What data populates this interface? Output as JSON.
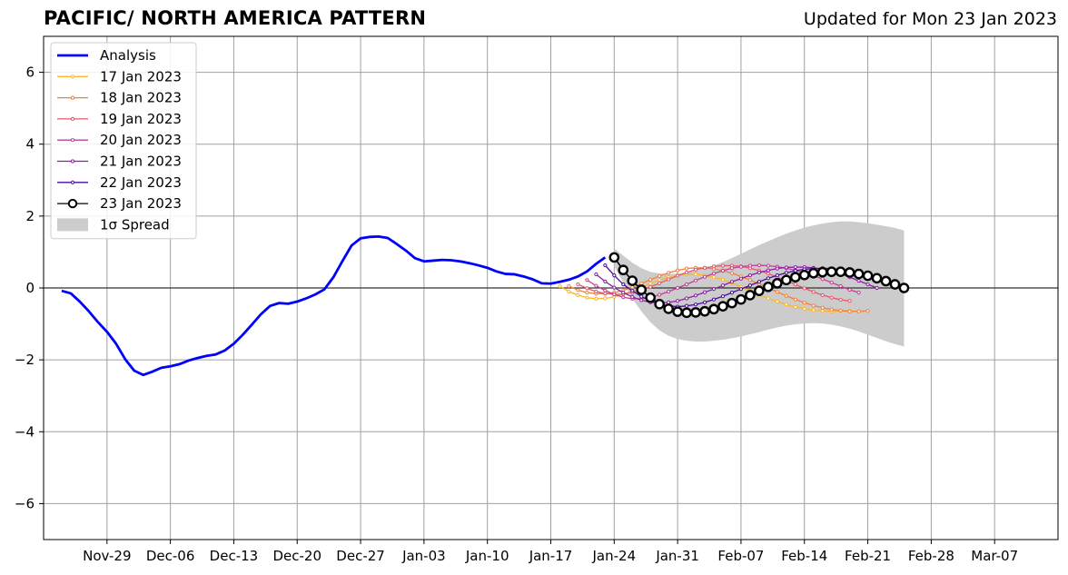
{
  "header": {
    "title": "PACIFIC/ NORTH AMERICA PATTERN",
    "updated": "Updated for Mon 23 Jan 2023"
  },
  "chart_data": {
    "type": "line",
    "title": "PACIFIC/ NORTH AMERICA PATTERN",
    "subtitle": "Updated for Mon 23 Jan 2023",
    "xlabel": "",
    "ylabel": "",
    "xlim": [
      "2022-11-22",
      "2023-03-14"
    ],
    "ylim": [
      -7,
      7
    ],
    "x_ticks": [
      "2022-11-29",
      "2022-12-06",
      "2022-12-13",
      "2022-12-20",
      "2022-12-27",
      "2023-01-03",
      "2023-01-10",
      "2023-01-17",
      "2023-01-24",
      "2023-01-31",
      "2023-02-07",
      "2023-02-14",
      "2023-02-21",
      "2023-02-28",
      "2023-03-07"
    ],
    "x_tick_labels": [
      "Nov-29",
      "Dec-06",
      "Dec-13",
      "Dec-20",
      "Dec-27",
      "Jan-03",
      "Jan-10",
      "Jan-17",
      "Jan-24",
      "Jan-31",
      "Feb-07",
      "Feb-14",
      "Feb-21",
      "Feb-28",
      "Mar-07"
    ],
    "y_ticks": [
      -6,
      -4,
      -2,
      0,
      2,
      4,
      6
    ],
    "y_tick_labels": [
      "−6",
      "−4",
      "−2",
      "0",
      "2",
      "4",
      "6"
    ],
    "grid": true,
    "legend_position": "top-left",
    "zero_line": 0,
    "series": [
      {
        "name": "Analysis",
        "color": "#0000ff",
        "style": "thick-line",
        "x_start": "2022-11-24",
        "values": [
          -0.08,
          -0.15,
          -0.38,
          -0.65,
          -0.95,
          -1.22,
          -1.55,
          -1.98,
          -2.3,
          -2.42,
          -2.33,
          -2.22,
          -2.18,
          -2.12,
          -2.02,
          -1.95,
          -1.89,
          -1.85,
          -1.74,
          -1.55,
          -1.3,
          -1.02,
          -0.73,
          -0.5,
          -0.42,
          -0.44,
          -0.38,
          -0.29,
          -0.18,
          -0.04,
          0.3,
          0.75,
          1.18,
          1.38,
          1.42,
          1.43,
          1.39,
          1.22,
          1.04,
          0.83,
          0.74,
          0.76,
          0.78,
          0.77,
          0.74,
          0.69,
          0.63,
          0.56,
          0.46,
          0.39,
          0.38,
          0.32,
          0.24,
          0.13,
          0.12,
          0.17,
          0.23,
          0.32,
          0.46,
          0.67,
          0.85
        ]
      },
      {
        "name": "17 Jan 2023",
        "color": "#fbb62c",
        "style": "small-marker-line",
        "x_start": "2023-01-18",
        "values": [
          0.05,
          -0.1,
          -0.2,
          -0.27,
          -0.3,
          -0.29,
          -0.25,
          -0.17,
          -0.08,
          0.02,
          0.12,
          0.22,
          0.3,
          0.36,
          0.38,
          0.38,
          0.35,
          0.3,
          0.23,
          0.14,
          0.03,
          -0.08,
          -0.19,
          -0.29,
          -0.38,
          -0.46,
          -0.53,
          -0.58,
          -0.62,
          -0.64,
          -0.65,
          -0.64,
          -0.63
        ]
      },
      {
        "name": "18 Jan 2023",
        "color": "#f37f3e",
        "style": "small-marker-line",
        "x_start": "2023-01-19",
        "values": [
          0.05,
          -0.06,
          -0.13,
          -0.16,
          -0.16,
          -0.13,
          -0.07,
          0.02,
          0.12,
          0.23,
          0.33,
          0.42,
          0.49,
          0.54,
          0.56,
          0.56,
          0.53,
          0.48,
          0.41,
          0.32,
          0.22,
          0.11,
          0.0,
          -0.11,
          -0.22,
          -0.32,
          -0.41,
          -0.49,
          -0.55,
          -0.6,
          -0.63,
          -0.65,
          -0.65,
          -0.64
        ]
      },
      {
        "name": "19 Jan 2023",
        "color": "#e0596f",
        "style": "small-marker-line",
        "x_start": "2023-01-20",
        "values": [
          0.1,
          -0.01,
          -0.1,
          -0.15,
          -0.18,
          -0.17,
          -0.13,
          -0.06,
          0.03,
          0.13,
          0.24,
          0.34,
          0.43,
          0.51,
          0.56,
          0.6,
          0.62,
          0.62,
          0.6,
          0.55,
          0.48,
          0.4,
          0.3,
          0.2,
          0.1,
          -0.01,
          -0.11,
          -0.2,
          -0.27,
          -0.33,
          -0.36
        ]
      },
      {
        "name": "20 Jan 2023",
        "color": "#c13f94",
        "style": "small-marker-line",
        "x_start": "2023-01-21",
        "values": [
          0.22,
          0.06,
          -0.07,
          -0.18,
          -0.26,
          -0.3,
          -0.3,
          -0.26,
          -0.19,
          -0.1,
          0.0,
          0.1,
          0.21,
          0.31,
          0.4,
          0.48,
          0.55,
          0.59,
          0.62,
          0.63,
          0.62,
          0.59,
          0.55,
          0.49,
          0.42,
          0.34,
          0.25,
          0.15,
          0.05,
          -0.05,
          -0.13
        ]
      },
      {
        "name": "21 Jan 2023",
        "color": "#8b1fa3",
        "style": "small-marker-line",
        "x_start": "2023-01-22",
        "values": [
          0.38,
          0.18,
          0.01,
          -0.13,
          -0.25,
          -0.34,
          -0.4,
          -0.42,
          -0.4,
          -0.36,
          -0.29,
          -0.21,
          -0.12,
          -0.03,
          0.07,
          0.17,
          0.26,
          0.35,
          0.43,
          0.49,
          0.54,
          0.57,
          0.58,
          0.58,
          0.56,
          0.52,
          0.46,
          0.39,
          0.3,
          0.2,
          0.1,
          0.0
        ]
      },
      {
        "name": "22 Jan 2023",
        "color": "#4b0b9f",
        "style": "small-marker-line",
        "x_start": "2023-01-23",
        "values": [
          0.63,
          0.35,
          0.1,
          -0.08,
          -0.24,
          -0.36,
          -0.45,
          -0.5,
          -0.52,
          -0.5,
          -0.46,
          -0.4,
          -0.32,
          -0.23,
          -0.13,
          -0.03,
          0.07,
          0.17,
          0.27,
          0.35,
          0.42,
          0.48,
          0.52,
          0.54,
          0.55,
          0.54,
          0.51,
          0.46,
          0.39,
          0.31,
          0.22,
          0.12
        ]
      },
      {
        "name": "23 Jan 2023",
        "color": "#000000",
        "style": "open-circle-line",
        "x_start": "2023-01-24",
        "values": [
          0.85,
          0.5,
          0.2,
          -0.05,
          -0.27,
          -0.45,
          -0.58,
          -0.66,
          -0.69,
          -0.68,
          -0.65,
          -0.59,
          -0.51,
          -0.42,
          -0.32,
          -0.2,
          -0.08,
          0.03,
          0.13,
          0.22,
          0.3,
          0.36,
          0.41,
          0.44,
          0.45,
          0.45,
          0.43,
          0.39,
          0.34,
          0.27,
          0.19,
          0.1,
          0.0
        ]
      }
    ],
    "spread": {
      "name": "1σ Spread",
      "color": "#cccccc",
      "x_start": "2023-01-24",
      "upper": [
        1.1,
        0.9,
        0.7,
        0.55,
        0.45,
        0.4,
        0.39,
        0.4,
        0.43,
        0.48,
        0.55,
        0.63,
        0.72,
        0.83,
        0.95,
        1.07,
        1.19,
        1.3,
        1.41,
        1.51,
        1.6,
        1.68,
        1.74,
        1.79,
        1.83,
        1.85,
        1.85,
        1.83,
        1.8,
        1.76,
        1.72,
        1.67,
        1.6
      ],
      "lower": [
        0.6,
        0.15,
        -0.3,
        -0.65,
        -0.95,
        -1.18,
        -1.33,
        -1.42,
        -1.47,
        -1.49,
        -1.49,
        -1.47,
        -1.44,
        -1.4,
        -1.35,
        -1.29,
        -1.23,
        -1.16,
        -1.1,
        -1.05,
        -1.01,
        -0.99,
        -0.98,
        -0.99,
        -1.02,
        -1.07,
        -1.13,
        -1.21,
        -1.3,
        -1.39,
        -1.48,
        -1.56,
        -1.63
      ]
    }
  }
}
